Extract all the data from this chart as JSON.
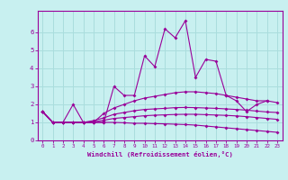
{
  "title": "",
  "xlabel": "Windchill (Refroidissement éolien,°C)",
  "ylabel": "",
  "bg_color": "#c8f0f0",
  "line_color": "#990099",
  "grid_color": "#aadddd",
  "xlim": [
    -0.5,
    23.5
  ],
  "ylim": [
    0,
    7.2
  ],
  "yticks": [
    0,
    1,
    2,
    3,
    4,
    5,
    6
  ],
  "xticks": [
    0,
    1,
    2,
    3,
    4,
    5,
    6,
    7,
    8,
    9,
    10,
    11,
    12,
    13,
    14,
    15,
    16,
    17,
    18,
    19,
    20,
    21,
    22,
    23
  ],
  "series": [
    [
      1.6,
      1.0,
      1.0,
      2.0,
      1.0,
      1.0,
      1.0,
      3.0,
      2.5,
      2.5,
      4.7,
      4.1,
      6.2,
      5.7,
      6.65,
      3.5,
      4.5,
      4.4,
      2.5,
      2.2,
      1.6,
      2.0,
      2.2,
      null
    ],
    [
      1.6,
      1.0,
      1.0,
      1.0,
      1.0,
      1.0,
      1.5,
      1.8,
      2.0,
      2.2,
      2.35,
      2.45,
      2.55,
      2.65,
      2.7,
      2.7,
      2.65,
      2.6,
      2.5,
      2.4,
      2.3,
      2.2,
      2.2,
      2.1
    ],
    [
      1.6,
      1.0,
      1.0,
      1.0,
      1.0,
      1.1,
      1.25,
      1.45,
      1.55,
      1.65,
      1.72,
      1.75,
      1.78,
      1.82,
      1.83,
      1.82,
      1.8,
      1.78,
      1.75,
      1.72,
      1.68,
      1.63,
      1.58,
      1.55
    ],
    [
      1.6,
      1.0,
      1.0,
      1.0,
      1.0,
      1.03,
      1.12,
      1.22,
      1.27,
      1.32,
      1.37,
      1.4,
      1.42,
      1.44,
      1.45,
      1.45,
      1.43,
      1.41,
      1.39,
      1.36,
      1.32,
      1.27,
      1.22,
      1.17
    ],
    [
      1.6,
      1.0,
      1.0,
      1.0,
      1.0,
      1.0,
      1.0,
      1.0,
      0.98,
      0.95,
      0.95,
      0.93,
      0.92,
      0.9,
      0.88,
      0.85,
      0.8,
      0.75,
      0.7,
      0.65,
      0.6,
      0.55,
      0.5,
      0.45
    ]
  ]
}
